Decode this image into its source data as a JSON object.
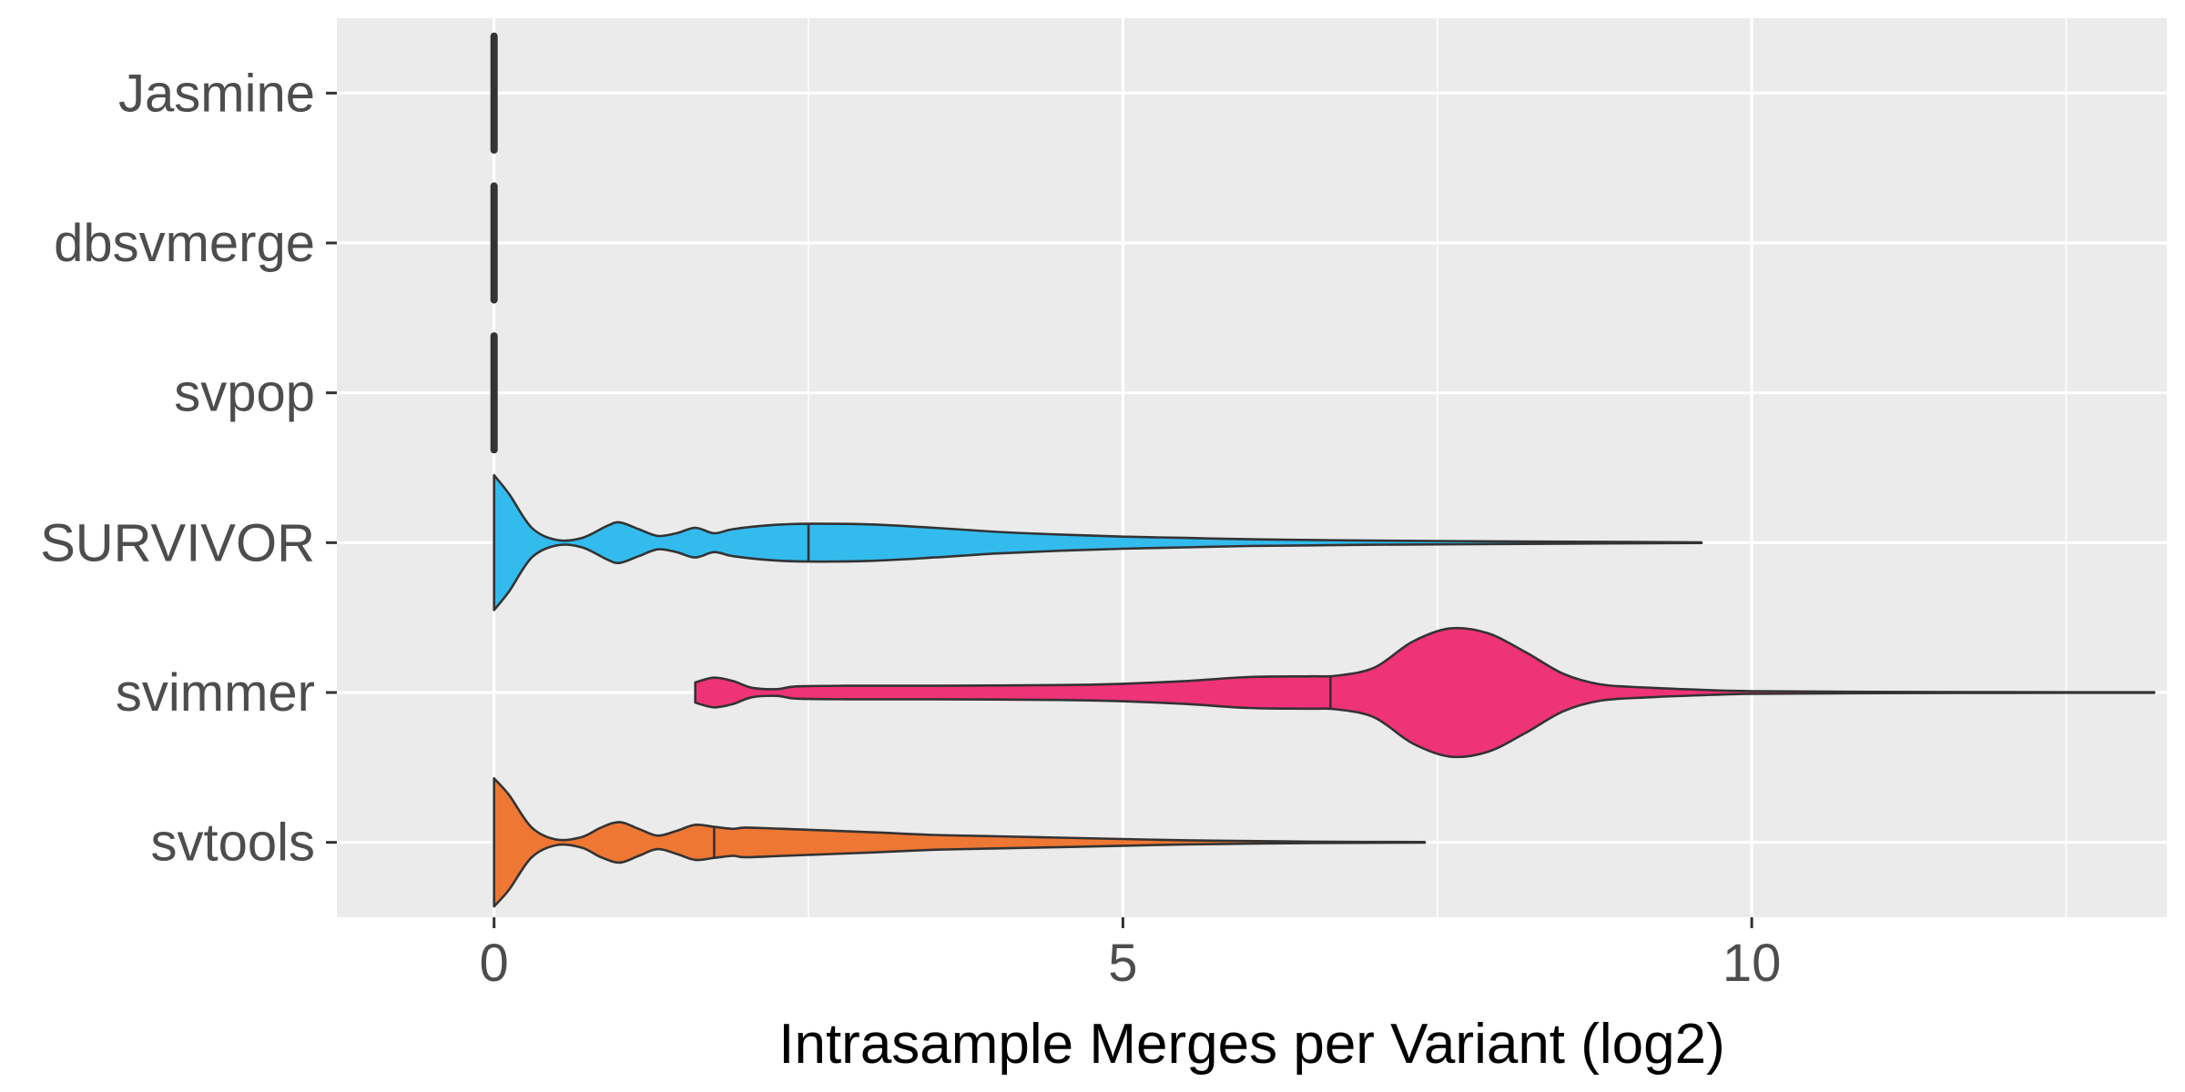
{
  "chart_data": {
    "type": "violin",
    "title": "",
    "xlabel": "Intrasample Merges per Variant (log2)",
    "ylabel": "",
    "xlim": [
      -1.25,
      13.3
    ],
    "x_ticks": [
      0,
      5,
      10
    ],
    "x_tick_labels": [
      "0",
      "5",
      "10"
    ],
    "orientation": "horizontal",
    "grid": true,
    "legend": "none",
    "categories": [
      "Jasmine",
      "dbsvmerge",
      "svpop",
      "SURVIVOR",
      "svimmer",
      "svtools"
    ],
    "series": [
      {
        "category": "Jasmine",
        "color": "#333333",
        "min": 0,
        "max": 0,
        "median": 0,
        "density": [
          [
            0,
            1.0
          ]
        ]
      },
      {
        "category": "dbsvmerge",
        "color": "#333333",
        "min": 0,
        "max": 0,
        "median": 0,
        "density": [
          [
            0,
            1.0
          ]
        ]
      },
      {
        "category": "svpop",
        "color": "#333333",
        "min": 0,
        "max": 0,
        "median": 0,
        "density": [
          [
            0,
            1.0
          ]
        ]
      },
      {
        "category": "SURVIVOR",
        "color": "#33BBEE",
        "min": 0,
        "max": 9.6,
        "median": 2.5,
        "density": [
          [
            0,
            1.0
          ],
          [
            0.12,
            0.72
          ],
          [
            0.3,
            0.22
          ],
          [
            0.5,
            0.04
          ],
          [
            0.7,
            0.07
          ],
          [
            0.9,
            0.25
          ],
          [
            1.0,
            0.3
          ],
          [
            1.15,
            0.2
          ],
          [
            1.3,
            0.1
          ],
          [
            1.45,
            0.14
          ],
          [
            1.6,
            0.22
          ],
          [
            1.75,
            0.14
          ],
          [
            1.9,
            0.2
          ],
          [
            2.2,
            0.26
          ],
          [
            2.5,
            0.28
          ],
          [
            3.0,
            0.27
          ],
          [
            3.5,
            0.22
          ],
          [
            4.0,
            0.16
          ],
          [
            4.5,
            0.12
          ],
          [
            5.0,
            0.09
          ],
          [
            5.5,
            0.07
          ],
          [
            6.0,
            0.05
          ],
          [
            6.5,
            0.04
          ],
          [
            7.0,
            0.03
          ],
          [
            8.0,
            0.02
          ],
          [
            9.0,
            0.01
          ],
          [
            9.6,
            0.005
          ]
        ]
      },
      {
        "category": "svimmer",
        "color": "#EE3377",
        "min": 1.6,
        "max": 13.2,
        "median": 6.65,
        "density": [
          [
            1.6,
            0.15
          ],
          [
            1.75,
            0.22
          ],
          [
            1.9,
            0.17
          ],
          [
            2.05,
            0.07
          ],
          [
            2.25,
            0.05
          ],
          [
            2.4,
            0.09
          ],
          [
            2.8,
            0.1
          ],
          [
            3.5,
            0.1
          ],
          [
            4.5,
            0.11
          ],
          [
            5.0,
            0.13
          ],
          [
            5.5,
            0.17
          ],
          [
            6.0,
            0.23
          ],
          [
            6.5,
            0.24
          ],
          [
            6.7,
            0.25
          ],
          [
            7.0,
            0.37
          ],
          [
            7.3,
            0.75
          ],
          [
            7.6,
            0.95
          ],
          [
            7.9,
            0.88
          ],
          [
            8.2,
            0.6
          ],
          [
            8.5,
            0.28
          ],
          [
            8.8,
            0.12
          ],
          [
            9.2,
            0.07
          ],
          [
            9.6,
            0.04
          ],
          [
            10.0,
            0.02
          ],
          [
            11.0,
            0.01
          ],
          [
            12.0,
            0.006
          ],
          [
            13.2,
            0.004
          ]
        ]
      },
      {
        "category": "svtools",
        "color": "#EE7733",
        "min": 0,
        "max": 7.4,
        "median": 1.75,
        "density": [
          [
            0,
            0.95
          ],
          [
            0.12,
            0.7
          ],
          [
            0.3,
            0.22
          ],
          [
            0.5,
            0.04
          ],
          [
            0.7,
            0.08
          ],
          [
            0.85,
            0.22
          ],
          [
            1.0,
            0.3
          ],
          [
            1.15,
            0.2
          ],
          [
            1.3,
            0.1
          ],
          [
            1.45,
            0.17
          ],
          [
            1.6,
            0.26
          ],
          [
            1.75,
            0.23
          ],
          [
            1.9,
            0.2
          ],
          [
            2.0,
            0.22
          ],
          [
            2.3,
            0.2
          ],
          [
            3.0,
            0.15
          ],
          [
            3.5,
            0.11
          ],
          [
            4.0,
            0.09
          ],
          [
            4.5,
            0.07
          ],
          [
            5.0,
            0.05
          ],
          [
            5.5,
            0.03
          ],
          [
            6.0,
            0.02
          ],
          [
            6.5,
            0.01
          ],
          [
            7.4,
            0.005
          ]
        ]
      }
    ]
  },
  "colors": {
    "panel_background": "#EBEBEB",
    "grid_line": "#FFFFFF",
    "outline": "#333333",
    "tick_mark": "#333333"
  }
}
